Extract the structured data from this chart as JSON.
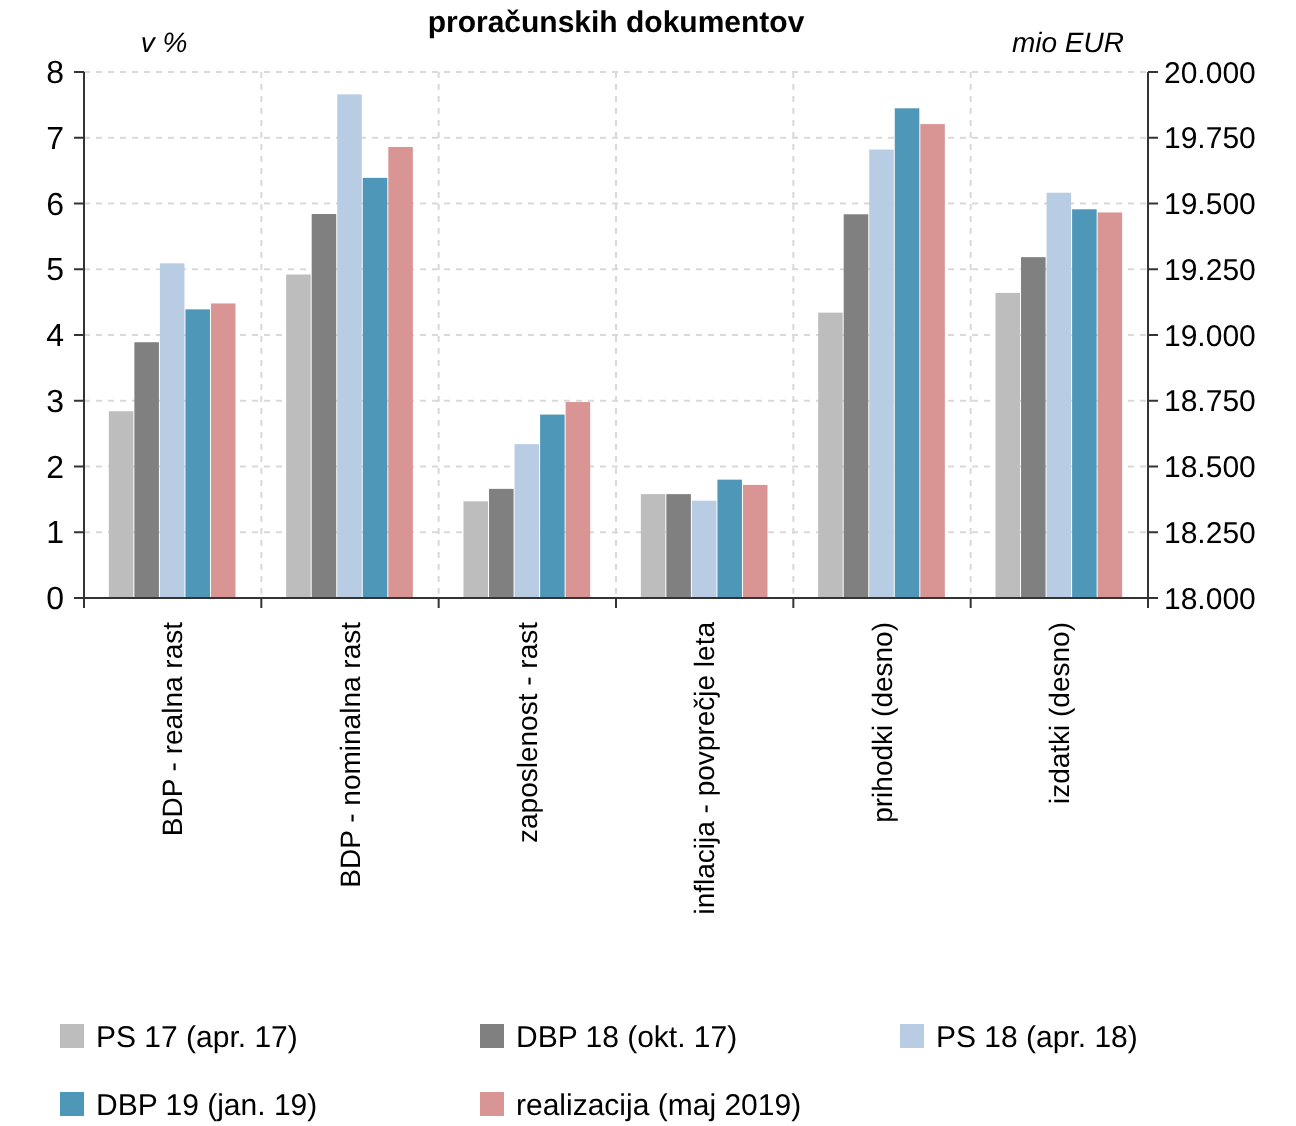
{
  "chart_data": {
    "type": "bar",
    "title": "proračunskih dokumentov",
    "ylabel": "v %",
    "y2label": "mio EUR",
    "categories": [
      "BDP - realna rast",
      "BDP - nominalna rast",
      "zaposlenost - rast",
      "inflacija - povprečje leta",
      "prihodki (desno)",
      "izdatki (desno)"
    ],
    "series": [
      {
        "name": "PS 17 (apr. 17)",
        "color": "#bdbdbd",
        "values": [
          2.84,
          4.92,
          1.47,
          1.58,
          null,
          null
        ]
      },
      {
        "name": "DBP 18 (okt. 17)",
        "color": "#808080",
        "values": [
          3.89,
          5.84,
          1.66,
          1.58,
          null,
          null
        ]
      },
      {
        "name": "PS 18 (apr. 18)",
        "color": "#b8cce4",
        "values": [
          5.09,
          7.66,
          2.34,
          1.48,
          null,
          null
        ]
      },
      {
        "name": "DBP 19 (jan. 19)",
        "color": "#4f97b8",
        "values": [
          4.39,
          6.39,
          2.79,
          1.8,
          null,
          null
        ]
      },
      {
        "name": "realizacija (maj 2019)",
        "color": "#d99594",
        "values": [
          4.48,
          6.86,
          2.98,
          1.72,
          null,
          null
        ]
      },
      {
        "color": "#bdbdbd",
        "axis": "y2",
        "values": [
          null,
          null,
          null,
          null,
          19085,
          19160
        ]
      },
      {
        "color": "#808080",
        "axis": "y2",
        "values": [
          null,
          null,
          null,
          null,
          19459,
          19296
        ]
      },
      {
        "color": "#b8cce4",
        "axis": "y2",
        "values": [
          null,
          null,
          null,
          null,
          19705,
          19541
        ]
      },
      {
        "color": "#4f97b8",
        "axis": "y2",
        "values": [
          null,
          null,
          null,
          null,
          19862,
          19478
        ]
      },
      {
        "color": "#d99594",
        "axis": "y2",
        "values": [
          null,
          null,
          null,
          null,
          19802,
          19466
        ]
      }
    ],
    "ylim": [
      0,
      8
    ],
    "yticks": [
      0,
      1,
      2,
      3,
      4,
      5,
      6,
      7,
      8
    ],
    "y2lim": [
      18000,
      20000
    ],
    "y2ticks": [
      {
        "value": 18000,
        "label": "18.000"
      },
      {
        "value": 18250,
        "label": "18.250"
      },
      {
        "value": 18500,
        "label": "18.500"
      },
      {
        "value": 18750,
        "label": "18.750"
      },
      {
        "value": 19000,
        "label": "19.000"
      },
      {
        "value": 19250,
        "label": "19.250"
      },
      {
        "value": 19500,
        "label": "19.500"
      },
      {
        "value": 19750,
        "label": "19.750"
      },
      {
        "value": 20000,
        "label": "20.000"
      }
    ],
    "grid": true,
    "legend": "bottom"
  }
}
